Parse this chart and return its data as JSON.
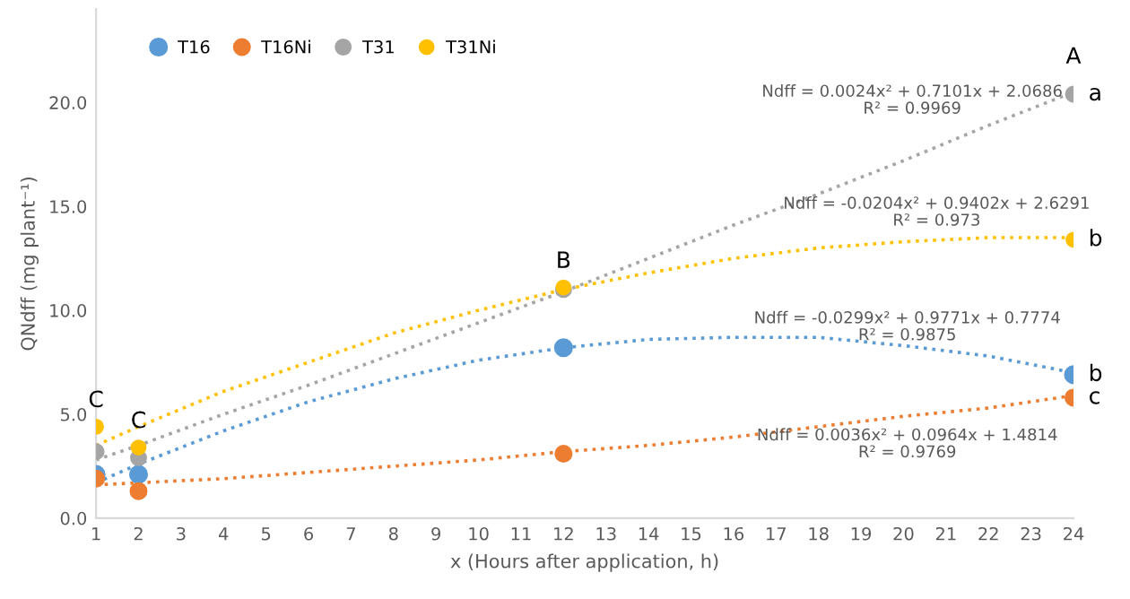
{
  "chart_data": {
    "type": "scatter",
    "xlabel": "x (Hours after application, h)",
    "ylabel": "QNdff (mg plant⁻¹)",
    "x": [
      1,
      2,
      12,
      24
    ],
    "series": [
      {
        "name": "T16",
        "color": "#5b9bd5",
        "values": [
          2.1,
          2.1,
          8.2,
          6.9
        ],
        "value_labels": [
          null,
          null,
          null,
          "b"
        ]
      },
      {
        "name": "T16Ni",
        "color": "#ed7d31",
        "values": [
          1.9,
          1.3,
          3.1,
          5.8
        ],
        "value_labels": [
          null,
          null,
          null,
          "c"
        ]
      },
      {
        "name": "T31",
        "color": "#a5a5a5",
        "values": [
          3.2,
          2.9,
          11.0,
          20.4
        ],
        "value_labels": [
          null,
          null,
          null,
          "a"
        ]
      },
      {
        "name": "T31Ni",
        "color": "#ffc000",
        "values": [
          4.4,
          3.4,
          11.1,
          13.4
        ],
        "value_labels": [
          "C",
          "C",
          "B",
          "b"
        ]
      },
      {
        "type": "line",
        "marker": "none",
        "color": "#5b9bd5",
        "line_style": "dotted",
        "x": [
          1,
          2,
          4,
          6,
          8,
          10,
          12,
          14,
          16,
          18,
          20,
          22,
          24
        ],
        "values": [
          1.7,
          2.6,
          4.2,
          5.6,
          6.7,
          7.6,
          8.2,
          8.6,
          8.7,
          8.7,
          8.3,
          7.8,
          7.0
        ]
      },
      {
        "type": "line",
        "marker": "none",
        "color": "#ed7d31",
        "line_style": "dotted",
        "x": [
          1,
          2,
          4,
          6,
          8,
          10,
          12,
          14,
          16,
          18,
          20,
          22,
          24
        ],
        "values": [
          1.6,
          1.7,
          1.9,
          2.2,
          2.5,
          2.8,
          3.2,
          3.5,
          3.9,
          4.4,
          4.9,
          5.3,
          5.9
        ]
      },
      {
        "type": "line",
        "marker": "none",
        "color": "#a5a5a5",
        "line_style": "dotted",
        "x": [
          1,
          2,
          4,
          6,
          8,
          10,
          12,
          14,
          16,
          18,
          20,
          22,
          24
        ],
        "values": [
          2.8,
          3.5,
          5.0,
          6.4,
          7.9,
          9.4,
          10.9,
          12.5,
          14.1,
          15.6,
          17.2,
          18.9,
          20.5
        ]
      },
      {
        "type": "line",
        "marker": "none",
        "color": "#ffc000",
        "line_style": "dotted",
        "x": [
          1,
          2,
          4,
          6,
          8,
          10,
          12,
          14,
          16,
          18,
          20,
          22,
          24
        ],
        "values": [
          3.5,
          4.4,
          6.1,
          7.5,
          8.9,
          10.0,
          11.0,
          11.8,
          12.5,
          13.0,
          13.3,
          13.5,
          13.5
        ]
      }
    ],
    "marker": "circle",
    "xlim": [
      1,
      24
    ],
    "xticks": [
      1,
      2,
      3,
      4,
      5,
      6,
      7,
      8,
      9,
      10,
      11,
      12,
      13,
      14,
      15,
      16,
      17,
      18,
      19,
      20,
      21,
      22,
      23,
      24
    ],
    "ylim": [
      0,
      24.5
    ],
    "yticks": [
      {
        "value": 0,
        "label": "0.0"
      },
      {
        "value": 5,
        "label": "5.0"
      },
      {
        "value": 10,
        "label": "10.0"
      },
      {
        "value": 15,
        "label": "15.0"
      },
      {
        "value": 20,
        "label": "20.0"
      }
    ],
    "grid": false,
    "legend": "top left",
    "annotations": [
      "A",
      "Ndff = 0.0024x² + 0.7101x + 2.0686\nR² = 0.9969",
      "Ndff = -0.0204x² + 0.9402x + 2.6291\nR² = 0.973",
      "Ndff = -0.0299x² + 0.9771x + 0.7774\nR² = 0.9875",
      "Ndff = 0.0036x² + 0.0964x + 1.4814\nR² = 0.9769"
    ]
  }
}
